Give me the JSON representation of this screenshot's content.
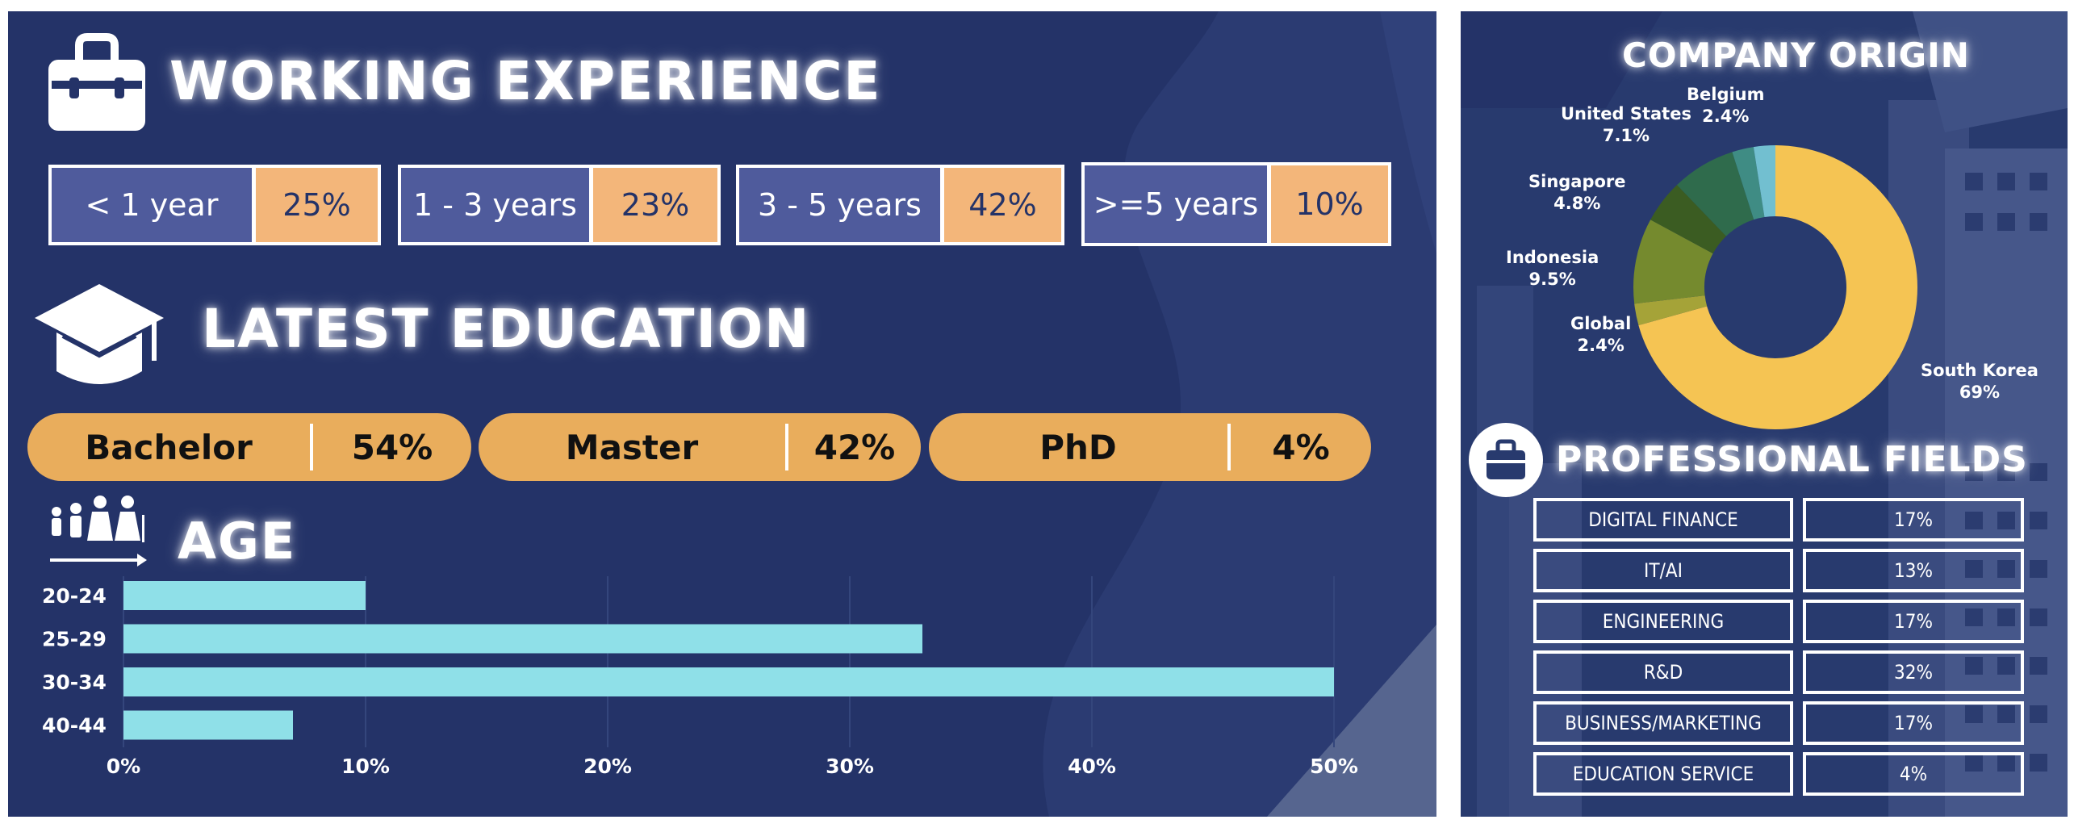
{
  "working_experience": {
    "title": "WORKING EXPERIENCE",
    "items": [
      {
        "label": "< 1 year",
        "value": "25%"
      },
      {
        "label": "1 - 3 years",
        "value": "23%"
      },
      {
        "label": "3 - 5 years",
        "value": "42%"
      },
      {
        "label": ">=5 years",
        "value": "10%"
      }
    ]
  },
  "latest_education": {
    "title": "LATEST EDUCATION",
    "items": [
      {
        "label": "Bachelor",
        "value": "54%"
      },
      {
        "label": "Master",
        "value": "42%"
      },
      {
        "label": "PhD",
        "value": "4%"
      }
    ]
  },
  "age": {
    "title": "AGE"
  },
  "company_origin": {
    "title": "COMPANY ORIGIN"
  },
  "professional_fields": {
    "title": "PROFESSIONAL FIELDS",
    "rows": [
      {
        "field": "DIGITAL FINANCE",
        "value": "17%"
      },
      {
        "field": "IT/AI",
        "value": "13%"
      },
      {
        "field": "ENGINEERING",
        "value": "17%"
      },
      {
        "field": "R&D",
        "value": "32%"
      },
      {
        "field": "BUSINESS/MARKETING",
        "value": "17%"
      },
      {
        "field": "EDUCATION SERVICE",
        "value": "4%"
      }
    ]
  },
  "colors": {
    "panel_bg": "#243368",
    "age_bar": "#8fe0e8",
    "education_pill": "#e9ad5c",
    "experience_value_bg": "#f3b67a",
    "experience_label_bg": "#4f5b9c"
  },
  "chart_data": [
    {
      "type": "bar",
      "orientation": "horizontal",
      "categories": [
        "20-24",
        "25-29",
        "30-34",
        "40-44"
      ],
      "values": [
        10,
        33,
        50,
        7
      ],
      "xlim": [
        0,
        50
      ],
      "xticks": [
        "0%",
        "10%",
        "20%",
        "30%",
        "40%",
        "50%"
      ],
      "grid": true,
      "color": "#8fe0e8"
    },
    {
      "type": "pie",
      "donut": true,
      "slices": [
        {
          "name": "South Korea",
          "value": 69,
          "label": "69%",
          "color": "#f5c453"
        },
        {
          "name": "Global",
          "value": 2.4,
          "label": "2.4%",
          "color": "#a5a338"
        },
        {
          "name": "Indonesia",
          "value": 9.5,
          "label": "9.5%",
          "color": "#758a2e"
        },
        {
          "name": "Singapore",
          "value": 4.8,
          "label": "4.8%",
          "color": "#3b5c22"
        },
        {
          "name": "United States",
          "value": 7.1,
          "label": "7.1%",
          "color": "#2f6b4c"
        },
        {
          "name": "Belgium",
          "value": 2.4,
          "label": "2.4%",
          "color": "#3f8c84"
        },
        {
          "name": "",
          "value": 2.4,
          "label": "",
          "color": "#72bfd0"
        }
      ]
    }
  ]
}
